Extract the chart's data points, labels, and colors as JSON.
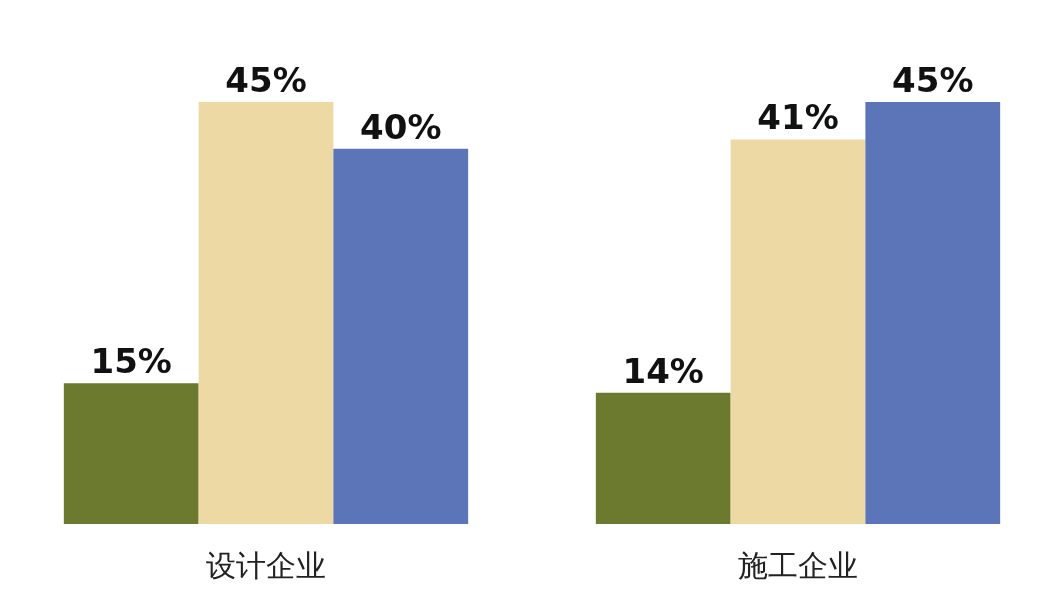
{
  "chart_data": {
    "type": "bar",
    "categories": [
      "设计企业",
      "施工企业"
    ],
    "series": [
      {
        "color": "#6b7a2e",
        "values": [
          15,
          14
        ],
        "value_labels": [
          "15%",
          "14%"
        ]
      },
      {
        "color": "#ecd9a4",
        "values": [
          45,
          41
        ],
        "value_labels": [
          "45%",
          "41%"
        ]
      },
      {
        "color": "#5c74b8",
        "values": [
          40,
          45
        ],
        "value_labels": [
          "40%",
          "45%"
        ]
      }
    ]
  }
}
